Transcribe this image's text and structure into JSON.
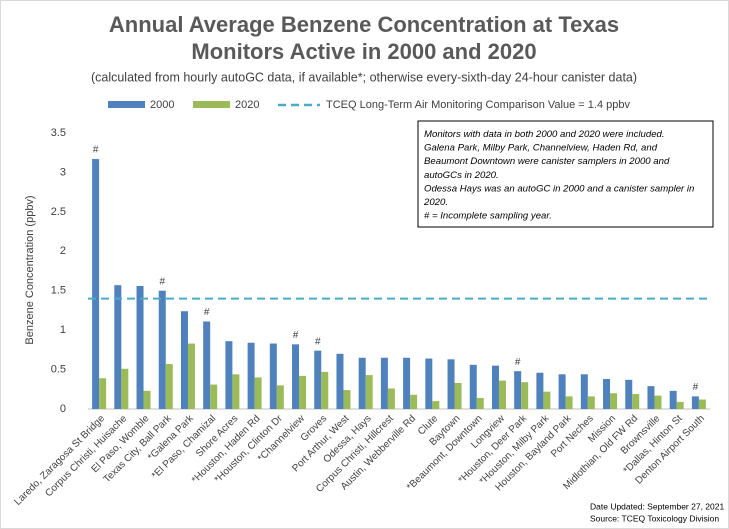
{
  "chart_data": {
    "type": "bar",
    "title": [
      "Annual Average Benzene Concentration at Texas",
      "Monitors Active in 2000 and 2020"
    ],
    "subtitle": "(calculated from hourly autoGC data, if available*; otherwise every-sixth-day 24-hour canister data)",
    "y_label": "Benzene Concentration (ppbv)",
    "categories": [
      "Laredo, Zaragosa St Bridge",
      "Corpus Christi, Huisache",
      "El Paso, Womble",
      "Texas City, Ball Park",
      "*Galena Park",
      "*El Paso, Chamizal",
      "Shore Acres",
      "*Houston, Haden Rd",
      "*Houston, Clinton Dr",
      "*Channelview",
      "Groves",
      "Port Arthur, West",
      "Odessa, Hays",
      "Corpus Christi, Hillcrest",
      "Austin, Webberville Rd",
      "Clute",
      "Baytown",
      "*Beaumont, Downtown",
      "Longview",
      "*Houston, Deer Park",
      "*Houston, Milby Park",
      "Houston, Bayland Park",
      "Port Neches",
      "Mission",
      "Midlothian, Old FW Rd",
      "Brownsville",
      "*Dallas, Hinton St",
      "Denton Airport South"
    ],
    "series": [
      {
        "name": "2000",
        "color": "#4f81bd",
        "values": [
          3.17,
          1.57,
          1.56,
          1.5,
          1.24,
          1.11,
          0.86,
          0.84,
          0.83,
          0.82,
          0.74,
          0.7,
          0.65,
          0.65,
          0.65,
          0.64,
          0.63,
          0.56,
          0.55,
          0.48,
          0.46,
          0.44,
          0.44,
          0.38,
          0.37,
          0.29,
          0.23,
          0.16
        ]
      },
      {
        "name": "2020",
        "color": "#9bbb59",
        "values": [
          0.39,
          0.51,
          0.23,
          0.57,
          0.83,
          0.31,
          0.44,
          0.4,
          0.3,
          0.42,
          0.47,
          0.24,
          0.43,
          0.26,
          0.18,
          0.1,
          0.33,
          0.14,
          0.36,
          0.34,
          0.22,
          0.16,
          0.16,
          0.2,
          0.19,
          0.17,
          0.09,
          0.12
        ]
      }
    ],
    "flags": [
      "#",
      null,
      null,
      "#",
      null,
      "#",
      null,
      null,
      null,
      "#",
      "#",
      null,
      null,
      null,
      null,
      null,
      null,
      null,
      null,
      "#",
      null,
      null,
      null,
      null,
      null,
      null,
      null,
      "#"
    ],
    "reference_line": {
      "name": "TCEQ Long-Term Air Monitoring Comparison Value = 1.4 ppbv",
      "value": 1.4,
      "color": "#4bacc6"
    },
    "ylim": [
      0,
      3.5
    ],
    "yticks": [
      0,
      0.5,
      1,
      1.5,
      2,
      2.5,
      3,
      3.5
    ],
    "notes": [
      "Monitors with data in both 2000 and 2020 were included.",
      "Galena Park, Milby Park, Channelview, Haden Rd, and",
      "Beaumont Downtown were canister samplers in 2000 and",
      "autoGCs in 2020.",
      "Odessa Hays was an autoGC in 2000 and a canister sampler in",
      "2020.",
      "# = Incomplete sampling year."
    ],
    "date_updated": "Date Updated: September 27, 2021",
    "source": "Source: TCEQ Toxicology Division"
  }
}
